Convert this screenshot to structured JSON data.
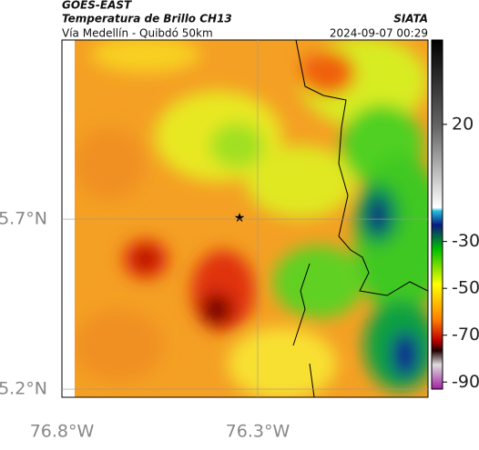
{
  "header": {
    "source": "GOES-EAST",
    "title": "Temperatura de Brillo CH13",
    "subtitle": "Vía Medellín - Quibdó 50km",
    "agency": "SIATA",
    "datetime": "2024-09-07 00:29"
  },
  "chart_data": {
    "type": "map",
    "xlim": [
      -76.8,
      -75.865
    ],
    "ylim": [
      5.176,
      6.227
    ],
    "xticks": [
      {
        "value": -76.8,
        "label": "76.8°W"
      },
      {
        "value": -76.3,
        "label": "76.3°W"
      }
    ],
    "yticks": [
      {
        "value": 5.2,
        "label": "5.2°N"
      },
      {
        "value": 5.7,
        "label": "5.7°N"
      }
    ],
    "colorbar": {
      "range": [
        -93,
        56
      ],
      "ticks": [
        20,
        -30,
        -50,
        -70,
        -90
      ]
    }
  }
}
